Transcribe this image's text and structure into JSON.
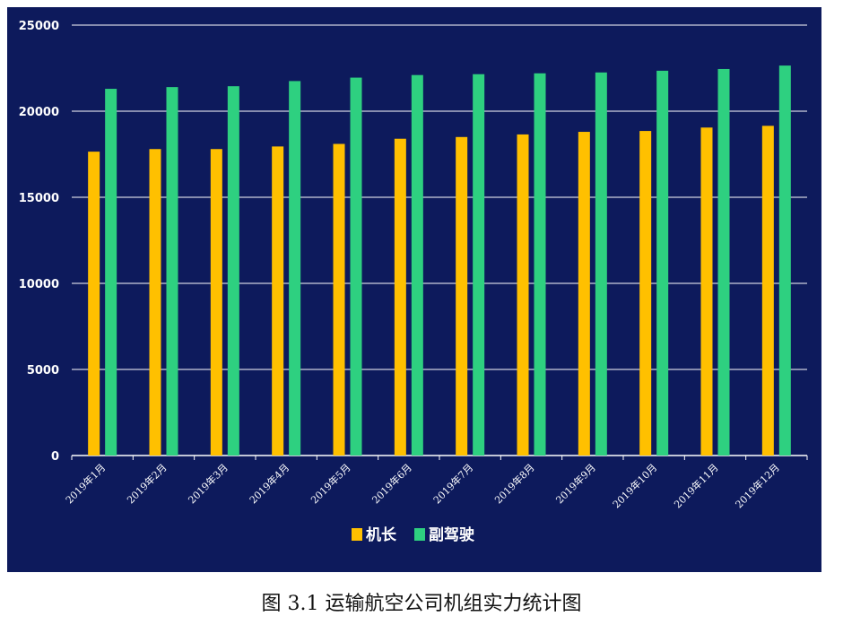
{
  "chart_data": {
    "type": "bar",
    "title": "",
    "xlabel": "",
    "ylabel": "",
    "ylim": [
      0,
      25000
    ],
    "yticks": [
      0,
      5000,
      10000,
      15000,
      20000,
      25000
    ],
    "grid": true,
    "legend_position": "bottom",
    "categories": [
      "2019年1月",
      "2019年2月",
      "2019年3月",
      "2019年4月",
      "2019年5月",
      "2019年6月",
      "2019年7月",
      "2019年8月",
      "2019年9月",
      "2019年10月",
      "2019年11月",
      "2019年12月"
    ],
    "series": [
      {
        "name": "机长",
        "color": "#ffc000",
        "values": [
          17650,
          17800,
          17800,
          17950,
          18100,
          18400,
          18500,
          18650,
          18800,
          18850,
          19050,
          19150
        ]
      },
      {
        "name": "副驾驶",
        "color": "#2ed080",
        "values": [
          21300,
          21400,
          21450,
          21750,
          21950,
          22100,
          22150,
          22200,
          22250,
          22350,
          22450,
          22650
        ]
      }
    ]
  },
  "caption": "图 3.1  运输航空公司机组实力统计图",
  "colors": {
    "background": "#0d1a5c",
    "grid": "#ffffff"
  }
}
